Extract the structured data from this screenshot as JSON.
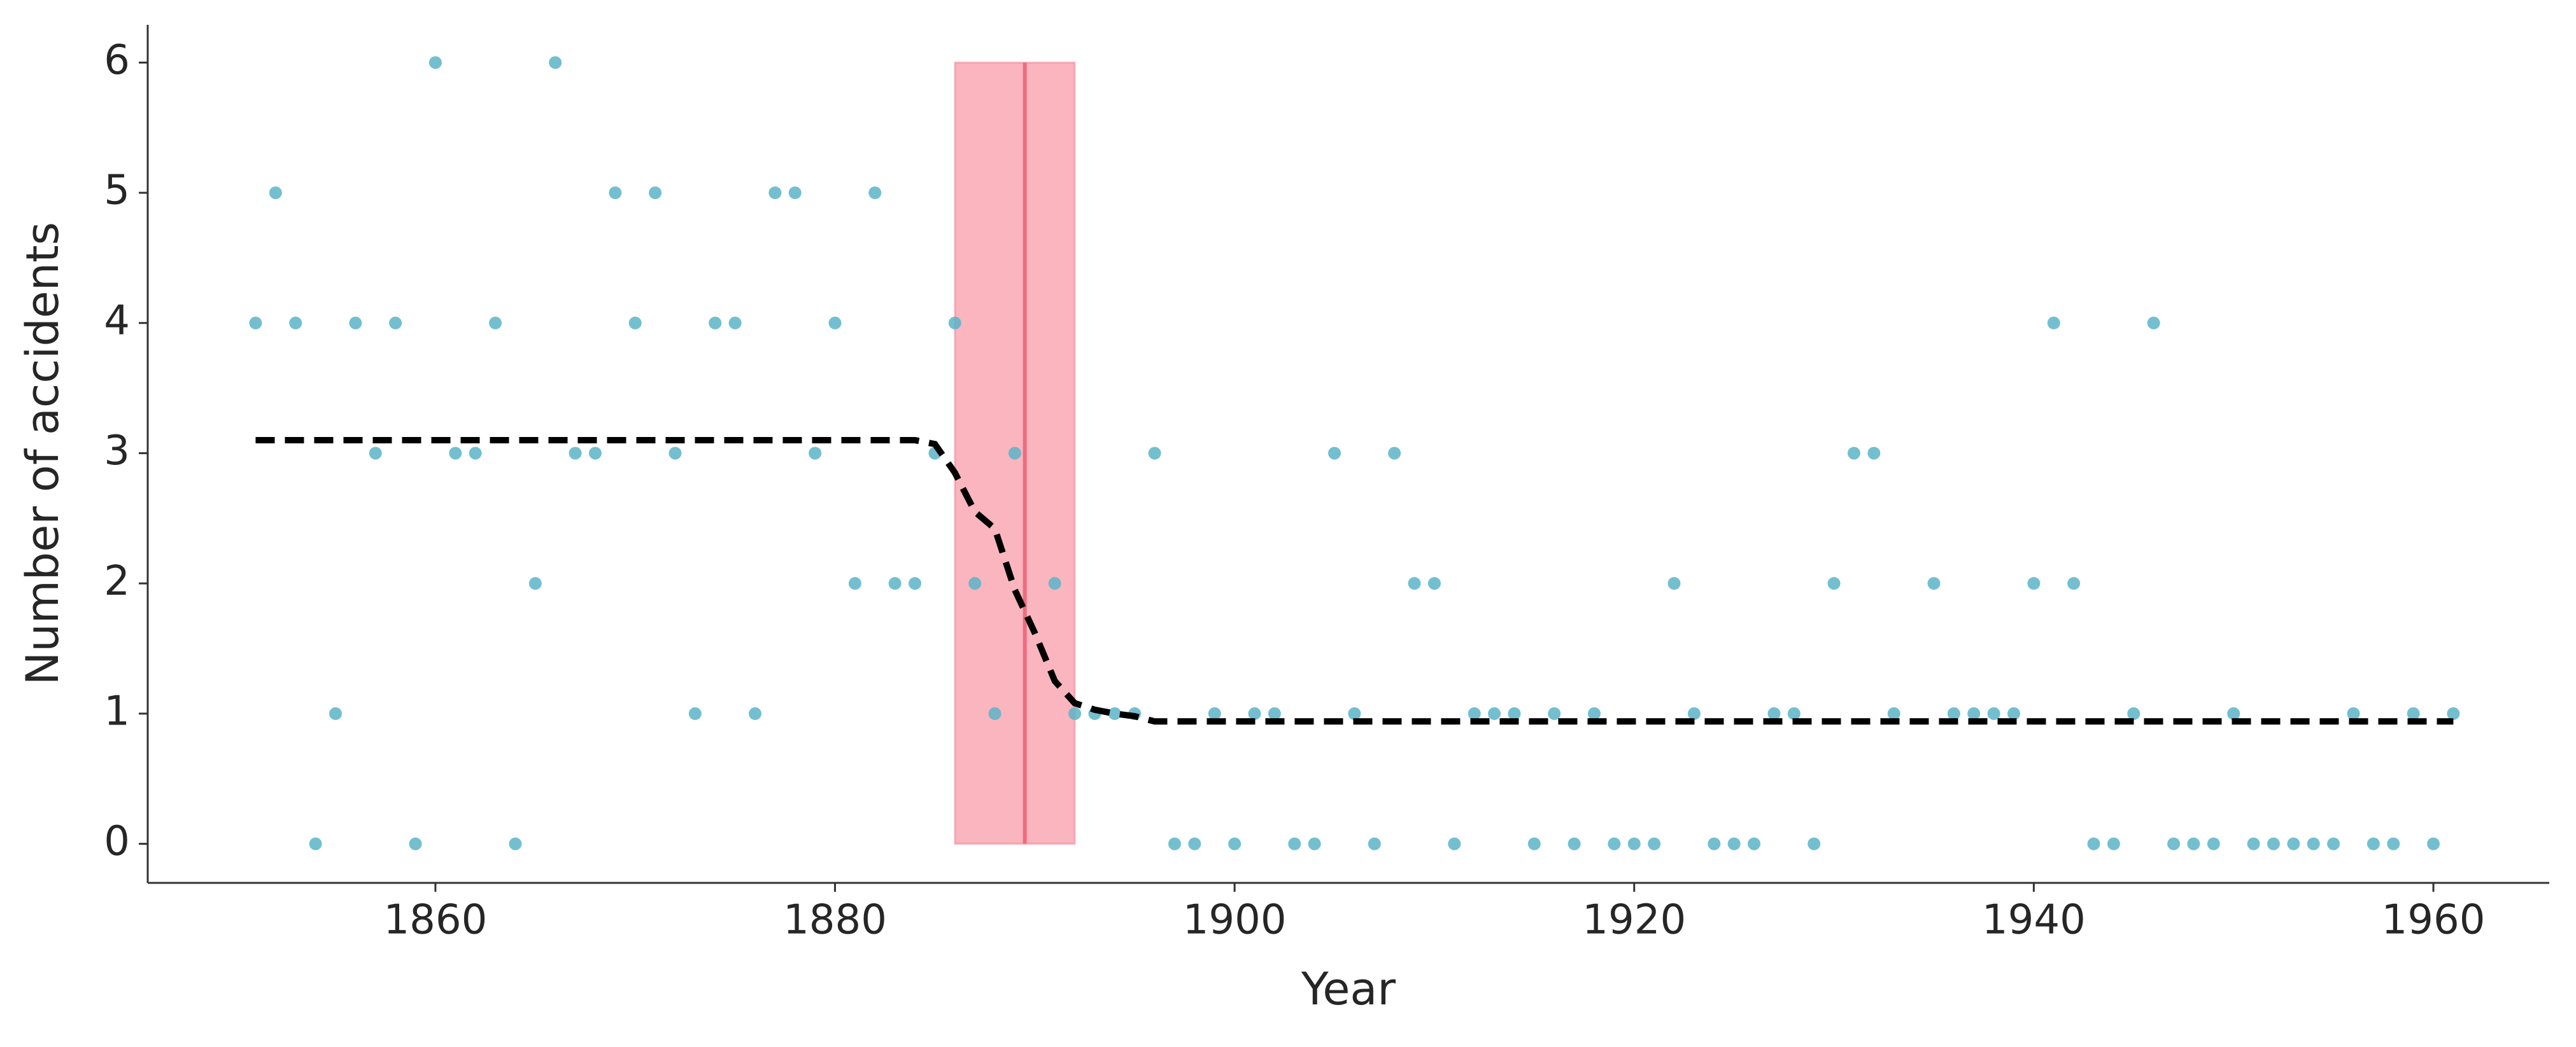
{
  "chart_data": {
    "type": "scatter",
    "x_label": "Year",
    "y_label": "Number of accidents",
    "xlim": [
      1845.6,
      1965.8
    ],
    "ylim": [
      -0.3,
      6.29
    ],
    "xticks": [
      1860,
      1880,
      1900,
      1920,
      1940,
      1960
    ],
    "yticks": [
      0,
      1,
      2,
      3,
      4,
      5,
      6
    ],
    "x_start": 1851,
    "values": [
      4,
      5,
      4,
      0,
      1,
      4,
      3,
      4,
      0,
      6,
      3,
      3,
      4,
      0,
      2,
      6,
      3,
      3,
      5,
      4,
      5,
      3,
      1,
      4,
      4,
      1,
      5,
      5,
      3,
      4,
      2,
      5,
      2,
      2,
      3,
      4,
      2,
      1,
      3,
      null,
      2,
      1,
      1,
      1,
      1,
      3,
      0,
      0,
      1,
      0,
      1,
      1,
      0,
      0,
      3,
      1,
      0,
      3,
      2,
      2,
      0,
      1,
      1,
      1,
      0,
      1,
      0,
      1,
      0,
      0,
      0,
      2,
      1,
      0,
      0,
      0,
      1,
      1,
      0,
      2,
      3,
      3,
      1,
      null,
      2,
      1,
      1,
      1,
      1,
      2,
      4,
      2,
      0,
      0,
      1,
      4,
      0,
      0,
      0,
      1,
      0,
      0,
      0,
      0,
      0,
      1,
      0,
      0,
      1,
      0,
      1
    ],
    "color": "#5ab4c8",
    "rate": {
      "x": [
        1851,
        1884,
        1885,
        1886,
        1887,
        1888,
        1889,
        1890,
        1891,
        1892,
        1893,
        1894,
        1895,
        1896,
        1961
      ],
      "values": [
        3.1,
        3.1,
        3.07,
        2.85,
        2.55,
        2.42,
        1.95,
        1.62,
        1.25,
        1.08,
        1.03,
        1.0,
        0.98,
        0.94,
        0.94
      ],
      "color": "#000000"
    },
    "switchpoint": {
      "range": [
        1886,
        1892
      ],
      "mean": 1889.5,
      "ylim": [
        0,
        6
      ],
      "color": "#f9a3ae",
      "line_color": "#f06a7f"
    }
  }
}
